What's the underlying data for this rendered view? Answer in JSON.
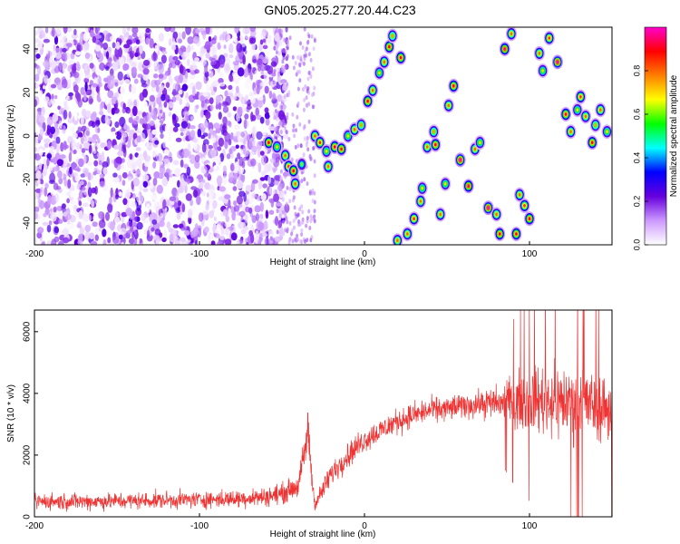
{
  "chart_data": [
    {
      "type": "heatmap",
      "title": "GN05.2025.277.20.44.C23",
      "xlabel": "Height of straight line (km)",
      "ylabel": "Frequency (Hz)",
      "xlim": [
        -200,
        150
      ],
      "ylim": [
        -50,
        50
      ],
      "xticks": [
        "-200",
        "-100",
        "0",
        "100"
      ],
      "yticks": [
        "-40",
        "-20",
        "0",
        "20",
        "40"
      ],
      "colorbar": {
        "label": "Normalized spectral amplitude",
        "range": [
          0.0,
          1.0
        ],
        "ticks": [
          "0.0",
          "0.2",
          "0.4",
          "0.6",
          "0.8"
        ],
        "colormap": [
          "#ffffff",
          "#cc99ff",
          "#6600dd",
          "#0000ff",
          "#00ffff",
          "#00ff00",
          "#ffff00",
          "#ff7f00",
          "#ff0000",
          "#ff00cc"
        ]
      },
      "noise_region_x": [
        -200,
        -55
      ],
      "high_amplitude_blobs": [
        {
          "x": -58,
          "y": -3,
          "amp": 0.9
        },
        {
          "x": -53,
          "y": -5,
          "amp": 0.7
        },
        {
          "x": -48,
          "y": -9,
          "amp": 0.8
        },
        {
          "x": -46,
          "y": -14,
          "amp": 0.85
        },
        {
          "x": -43,
          "y": -16,
          "amp": 0.9
        },
        {
          "x": -42,
          "y": -22,
          "amp": 0.8
        },
        {
          "x": -38,
          "y": -13,
          "amp": 0.6
        },
        {
          "x": -30,
          "y": 0,
          "amp": 0.8
        },
        {
          "x": -27,
          "y": -3,
          "amp": 0.85
        },
        {
          "x": -23,
          "y": -7,
          "amp": 0.7
        },
        {
          "x": -22,
          "y": -14,
          "amp": 0.8
        },
        {
          "x": -18,
          "y": -5,
          "amp": 0.9
        },
        {
          "x": -14,
          "y": -6,
          "amp": 0.9
        },
        {
          "x": -10,
          "y": 0,
          "amp": 0.7
        },
        {
          "x": -6,
          "y": 3,
          "amp": 0.8
        },
        {
          "x": -2,
          "y": 5,
          "amp": 0.75
        },
        {
          "x": 2,
          "y": 16,
          "amp": 0.9
        },
        {
          "x": 5,
          "y": 21,
          "amp": 0.8
        },
        {
          "x": 9,
          "y": 29,
          "amp": 0.7
        },
        {
          "x": 12,
          "y": 34,
          "amp": 0.8
        },
        {
          "x": 15,
          "y": 41,
          "amp": 0.9
        },
        {
          "x": 17,
          "y": 46,
          "amp": 0.75
        },
        {
          "x": 20,
          "y": -48,
          "amp": 0.8
        },
        {
          "x": 22,
          "y": 36,
          "amp": 0.9
        },
        {
          "x": 26,
          "y": -45,
          "amp": 0.8
        },
        {
          "x": 30,
          "y": -38,
          "amp": 0.85
        },
        {
          "x": 34,
          "y": -30,
          "amp": 0.8
        },
        {
          "x": 35,
          "y": -24,
          "amp": 0.7
        },
        {
          "x": 38,
          "y": -5,
          "amp": 0.8
        },
        {
          "x": 42,
          "y": 2,
          "amp": 0.75
        },
        {
          "x": 43,
          "y": -4,
          "amp": 0.9
        },
        {
          "x": 46,
          "y": -36,
          "amp": 0.8
        },
        {
          "x": 49,
          "y": -22,
          "amp": 0.7
        },
        {
          "x": 51,
          "y": 14,
          "amp": 0.8
        },
        {
          "x": 54,
          "y": 23,
          "amp": 0.9
        },
        {
          "x": 58,
          "y": -11,
          "amp": 1.0
        },
        {
          "x": 63,
          "y": -23,
          "amp": 0.95
        },
        {
          "x": 67,
          "y": -6,
          "amp": 0.8
        },
        {
          "x": 70,
          "y": -3,
          "amp": 0.7
        },
        {
          "x": 75,
          "y": -33,
          "amp": 1.0
        },
        {
          "x": 80,
          "y": -36,
          "amp": 0.8
        },
        {
          "x": 82,
          "y": -45,
          "amp": 0.9
        },
        {
          "x": 85,
          "y": 40,
          "amp": 0.95
        },
        {
          "x": 89,
          "y": 47,
          "amp": 0.8
        },
        {
          "x": 92,
          "y": -45,
          "amp": 0.9
        },
        {
          "x": 94,
          "y": -27,
          "amp": 0.8
        },
        {
          "x": 97,
          "y": -32,
          "amp": 0.85
        },
        {
          "x": 100,
          "y": -38,
          "amp": 0.9
        },
        {
          "x": 106,
          "y": 38,
          "amp": 0.8
        },
        {
          "x": 108,
          "y": 30,
          "amp": 0.7
        },
        {
          "x": 112,
          "y": 45,
          "amp": 0.85
        },
        {
          "x": 117,
          "y": 34,
          "amp": 1.0
        },
        {
          "x": 122,
          "y": 10,
          "amp": 0.9
        },
        {
          "x": 125,
          "y": 2,
          "amp": 0.8
        },
        {
          "x": 129,
          "y": 12,
          "amp": 0.7
        },
        {
          "x": 131,
          "y": 18,
          "amp": 0.85
        },
        {
          "x": 134,
          "y": 9,
          "amp": 0.8
        },
        {
          "x": 138,
          "y": -3,
          "amp": 0.9
        },
        {
          "x": 140,
          "y": 5,
          "amp": 0.75
        },
        {
          "x": 143,
          "y": 12,
          "amp": 0.8
        },
        {
          "x": 147,
          "y": 2,
          "amp": 0.7
        }
      ]
    },
    {
      "type": "line",
      "xlabel": "Height of straight line (km)",
      "ylabel": "SNR (10 * v/v)",
      "xlim": [
        -200,
        150
      ],
      "ylim": [
        0,
        6700
      ],
      "xticks": [
        "-200",
        "-100",
        "0",
        "100"
      ],
      "yticks": [
        "0",
        "2000",
        "4000",
        "6000"
      ],
      "line_color": "#ee3333",
      "series": [
        {
          "x": [
            -200,
            -180,
            -160,
            -140,
            -120,
            -100,
            -80,
            -60,
            -50,
            -45,
            -40,
            -36,
            -34,
            -32,
            -30,
            -25,
            -20,
            -10,
            0,
            10,
            20,
            30,
            40,
            50,
            60,
            70,
            80,
            90,
            100,
            110,
            120,
            130,
            140,
            150
          ],
          "y": [
            500,
            500,
            500,
            520,
            540,
            560,
            580,
            650,
            750,
            900,
            1000,
            2200,
            2800,
            1300,
            400,
            900,
            1400,
            2000,
            2500,
            2800,
            3100,
            3300,
            3450,
            3500,
            3600,
            3650,
            3700,
            3750,
            3800,
            3800,
            3750,
            3700,
            3600,
            3500
          ],
          "amplitude": [
            400,
            400,
            400,
            400,
            400,
            400,
            420,
            450,
            500,
            500,
            500,
            900,
            1300,
            600,
            300,
            500,
            600,
            600,
            600,
            600,
            600,
            600,
            600,
            600,
            600,
            650,
            800,
            1200,
            1500,
            1700,
            1800,
            1800,
            1700,
            1600
          ]
        }
      ]
    }
  ]
}
